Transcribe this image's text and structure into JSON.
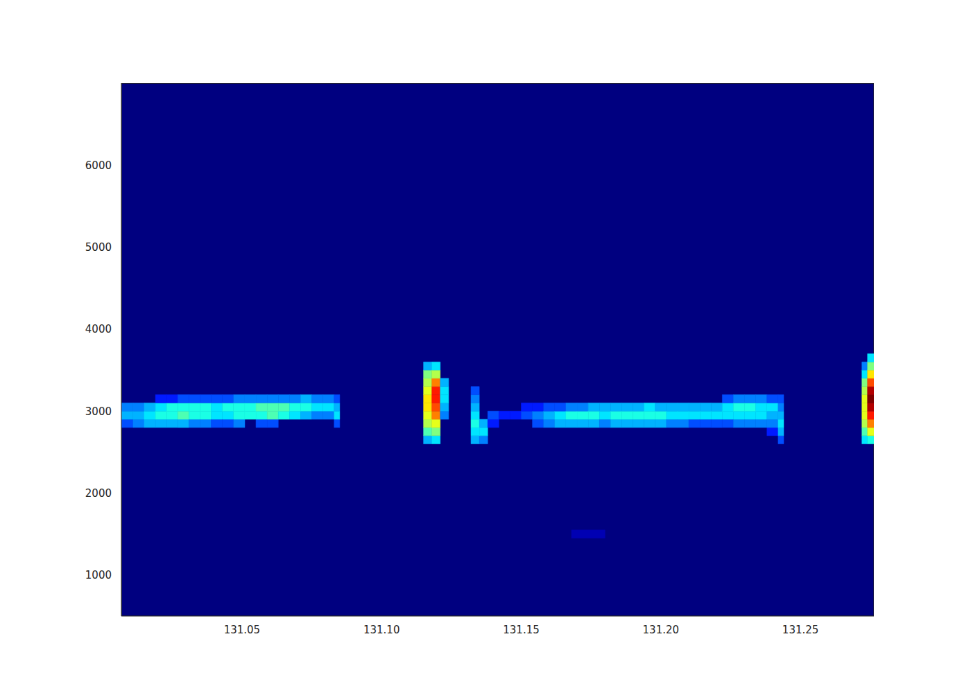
{
  "chart_data": {
    "type": "heatmap",
    "color": "jet",
    "grid": false,
    "xlim": [
      131.0068,
      131.2763
    ],
    "ylim": [
      500,
      7000
    ],
    "xticks": [
      {
        "value": 131.05,
        "label": "131.05"
      },
      {
        "value": 131.1,
        "label": "131.10"
      },
      {
        "value": 131.15,
        "label": "131.15"
      },
      {
        "value": 131.2,
        "label": "131.20"
      },
      {
        "value": 131.25,
        "label": "131.25"
      }
    ],
    "yticks": [
      1000,
      2000,
      3000,
      4000,
      5000,
      6000
    ],
    "color_range": [
      0,
      1
    ],
    "cell_height": 100,
    "columns": [
      {
        "x0": 131.0068,
        "x1": 131.011,
        "y0": 2800,
        "values": [
          0.2,
          0.3,
          0.25
        ]
      },
      {
        "x0": 131.011,
        "x1": 131.015,
        "y0": 2800,
        "values": [
          0.25,
          0.3,
          0.25
        ]
      },
      {
        "x0": 131.015,
        "x1": 131.019,
        "y0": 2800,
        "values": [
          0.3,
          0.35,
          0.3
        ]
      },
      {
        "x0": 131.019,
        "x1": 131.023,
        "y0": 2800,
        "values": [
          0.3,
          0.4,
          0.35,
          0.15
        ]
      },
      {
        "x0": 131.023,
        "x1": 131.027,
        "y0": 2800,
        "values": [
          0.3,
          0.4,
          0.4,
          0.15
        ]
      },
      {
        "x0": 131.027,
        "x1": 131.031,
        "y0": 2800,
        "values": [
          0.3,
          0.45,
          0.4,
          0.2
        ]
      },
      {
        "x0": 131.031,
        "x1": 131.035,
        "y0": 2800,
        "values": [
          0.25,
          0.4,
          0.4,
          0.2
        ]
      },
      {
        "x0": 131.035,
        "x1": 131.039,
        "y0": 2800,
        "values": [
          0.25,
          0.4,
          0.4,
          0.2
        ]
      },
      {
        "x0": 131.039,
        "x1": 131.043,
        "y0": 2800,
        "values": [
          0.2,
          0.35,
          0.35,
          0.2
        ]
      },
      {
        "x0": 131.043,
        "x1": 131.047,
        "y0": 2800,
        "values": [
          0.2,
          0.35,
          0.4,
          0.2
        ]
      },
      {
        "x0": 131.047,
        "x1": 131.051,
        "y0": 2800,
        "values": [
          0.25,
          0.4,
          0.4,
          0.25
        ]
      },
      {
        "x0": 131.051,
        "x1": 131.055,
        "y0": 2900,
        "values": [
          0.4,
          0.4,
          0.25
        ]
      },
      {
        "x0": 131.055,
        "x1": 131.059,
        "y0": 2800,
        "values": [
          0.2,
          0.4,
          0.45,
          0.25
        ]
      },
      {
        "x0": 131.059,
        "x1": 131.063,
        "y0": 2800,
        "values": [
          0.2,
          0.45,
          0.45,
          0.25
        ]
      },
      {
        "x0": 131.063,
        "x1": 131.067,
        "y0": 2900,
        "values": [
          0.4,
          0.45,
          0.25
        ]
      },
      {
        "x0": 131.067,
        "x1": 131.071,
        "y0": 2900,
        "values": [
          0.35,
          0.4,
          0.25
        ]
      },
      {
        "x0": 131.071,
        "x1": 131.075,
        "y0": 2900,
        "values": [
          0.3,
          0.4,
          0.3
        ]
      },
      {
        "x0": 131.075,
        "x1": 131.079,
        "y0": 2900,
        "values": [
          0.25,
          0.35,
          0.25
        ]
      },
      {
        "x0": 131.079,
        "x1": 131.083,
        "y0": 2900,
        "values": [
          0.25,
          0.35,
          0.25
        ]
      },
      {
        "x0": 131.083,
        "x1": 131.085,
        "y0": 2800,
        "values": [
          0.2,
          0.35,
          0.3,
          0.2
        ]
      },
      {
        "x0": 131.115,
        "x1": 131.118,
        "y0": 2600,
        "values": [
          0.3,
          0.45,
          0.55,
          0.6,
          0.65,
          0.65,
          0.6,
          0.55,
          0.5,
          0.3
        ]
      },
      {
        "x0": 131.118,
        "x1": 131.121,
        "y0": 2600,
        "values": [
          0.35,
          0.5,
          0.6,
          0.75,
          0.8,
          0.85,
          0.85,
          0.75,
          0.55,
          0.35
        ]
      },
      {
        "x0": 131.121,
        "x1": 131.124,
        "y0": 2900,
        "values": [
          0.25,
          0.3,
          0.35,
          0.35,
          0.3
        ]
      },
      {
        "x0": 131.132,
        "x1": 131.135,
        "y0": 2600,
        "values": [
          0.3,
          0.35,
          0.4,
          0.35,
          0.3,
          0.25,
          0.2
        ]
      },
      {
        "x0": 131.135,
        "x1": 131.138,
        "y0": 2600,
        "values": [
          0.25,
          0.35,
          0.3
        ]
      },
      {
        "x0": 131.138,
        "x1": 131.142,
        "y0": 2800,
        "values": [
          0.15,
          0.2
        ]
      },
      {
        "x0": 131.142,
        "x1": 131.146,
        "y0": 2900,
        "values": [
          0.15
        ]
      },
      {
        "x0": 131.146,
        "x1": 131.15,
        "y0": 2900,
        "values": [
          0.15
        ]
      },
      {
        "x0": 131.15,
        "x1": 131.154,
        "y0": 2900,
        "values": [
          0.2,
          0.15
        ]
      },
      {
        "x0": 131.154,
        "x1": 131.158,
        "y0": 2800,
        "values": [
          0.2,
          0.25,
          0.15
        ]
      },
      {
        "x0": 131.158,
        "x1": 131.162,
        "y0": 2800,
        "values": [
          0.25,
          0.3,
          0.2
        ]
      },
      {
        "x0": 131.162,
        "x1": 131.166,
        "y0": 2800,
        "values": [
          0.3,
          0.35,
          0.2
        ]
      },
      {
        "x0": 131.166,
        "x1": 131.17,
        "y0": 2800,
        "values": [
          0.3,
          0.4,
          0.25
        ]
      },
      {
        "x0": 131.17,
        "x1": 131.174,
        "y0": 2800,
        "values": [
          0.3,
          0.4,
          0.25
        ]
      },
      {
        "x0": 131.174,
        "x1": 131.178,
        "y0": 2800,
        "values": [
          0.3,
          0.4,
          0.3
        ]
      },
      {
        "x0": 131.178,
        "x1": 131.182,
        "y0": 2800,
        "values": [
          0.25,
          0.35,
          0.3
        ]
      },
      {
        "x0": 131.182,
        "x1": 131.186,
        "y0": 2800,
        "values": [
          0.3,
          0.4,
          0.3
        ]
      },
      {
        "x0": 131.186,
        "x1": 131.19,
        "y0": 2800,
        "values": [
          0.3,
          0.4,
          0.3
        ]
      },
      {
        "x0": 131.19,
        "x1": 131.194,
        "y0": 2800,
        "values": [
          0.3,
          0.4,
          0.3
        ]
      },
      {
        "x0": 131.194,
        "x1": 131.198,
        "y0": 2800,
        "values": [
          0.3,
          0.4,
          0.35
        ]
      },
      {
        "x0": 131.198,
        "x1": 131.202,
        "y0": 2800,
        "values": [
          0.3,
          0.4,
          0.3
        ]
      },
      {
        "x0": 131.202,
        "x1": 131.206,
        "y0": 2800,
        "values": [
          0.25,
          0.35,
          0.3
        ]
      },
      {
        "x0": 131.206,
        "x1": 131.21,
        "y0": 2800,
        "values": [
          0.25,
          0.35,
          0.3
        ]
      },
      {
        "x0": 131.21,
        "x1": 131.214,
        "y0": 2800,
        "values": [
          0.2,
          0.35,
          0.3
        ]
      },
      {
        "x0": 131.214,
        "x1": 131.218,
        "y0": 2800,
        "values": [
          0.2,
          0.35,
          0.3
        ]
      },
      {
        "x0": 131.218,
        "x1": 131.222,
        "y0": 2800,
        "values": [
          0.2,
          0.35,
          0.3
        ]
      },
      {
        "x0": 131.222,
        "x1": 131.226,
        "y0": 2800,
        "values": [
          0.2,
          0.35,
          0.35,
          0.2
        ]
      },
      {
        "x0": 131.226,
        "x1": 131.23,
        "y0": 2800,
        "values": [
          0.25,
          0.35,
          0.4,
          0.25
        ]
      },
      {
        "x0": 131.23,
        "x1": 131.234,
        "y0": 2800,
        "values": [
          0.25,
          0.35,
          0.4,
          0.25
        ]
      },
      {
        "x0": 131.234,
        "x1": 131.238,
        "y0": 2800,
        "values": [
          0.25,
          0.35,
          0.35,
          0.25
        ]
      },
      {
        "x0": 131.238,
        "x1": 131.242,
        "y0": 2700,
        "values": [
          0.15,
          0.25,
          0.3,
          0.35,
          0.2
        ]
      },
      {
        "x0": 131.242,
        "x1": 131.244,
        "y0": 2600,
        "values": [
          0.2,
          0.3,
          0.35,
          0.3,
          0.25,
          0.2
        ]
      },
      {
        "x0": 131.168,
        "x1": 131.18,
        "y0": 1450,
        "values": [
          0.05
        ]
      },
      {
        "x0": 131.272,
        "x1": 131.274,
        "y0": 2600,
        "values": [
          0.35,
          0.45,
          0.55,
          0.6,
          0.6,
          0.6,
          0.55,
          0.5,
          0.35,
          0.25
        ]
      },
      {
        "x0": 131.274,
        "x1": 131.2763,
        "y0": 2600,
        "values": [
          0.4,
          0.6,
          0.75,
          0.85,
          0.95,
          1.0,
          0.95,
          0.8,
          0.65,
          0.5,
          0.35
        ]
      }
    ]
  }
}
